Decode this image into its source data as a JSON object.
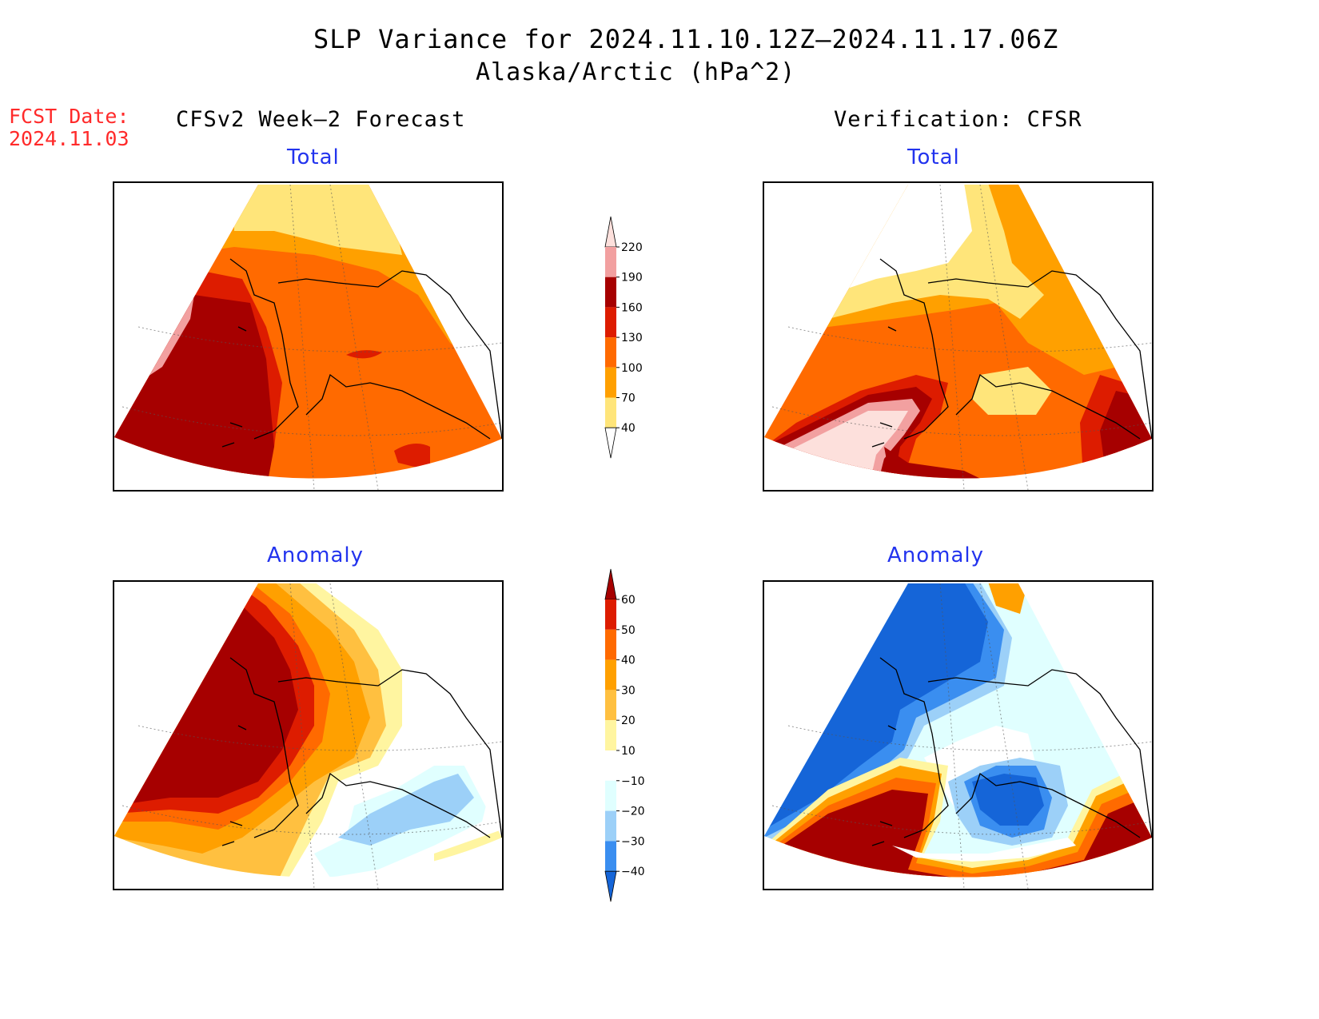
{
  "header": {
    "title": "SLP Variance for 2024.11.10.12Z–2024.11.17.06Z",
    "subtitle": "Alaska/Arctic (hPa^2)"
  },
  "forecast_date": {
    "label": "FCST Date:",
    "value": "2024.11.03"
  },
  "columns": {
    "left": "CFSv2 Week–2 Forecast",
    "right": "Verification: CFSR"
  },
  "panels": {
    "forecast_total": "Total",
    "forecast_anomaly": "Anomaly",
    "verification_total": "Total",
    "verification_anomaly": "Anomaly"
  },
  "colorbars": {
    "total": {
      "labels": [
        "220",
        "190",
        "160",
        "130",
        "100",
        "70",
        "40"
      ],
      "colors": [
        "#fde0dc",
        "#f2a0a0",
        "#a60000",
        "#dd1c00",
        "#ff6a00",
        "#ffa000",
        "#ffe57a",
        "#ffffff"
      ]
    },
    "anomaly": {
      "labels": [
        "60",
        "50",
        "40",
        "30",
        "20",
        "10",
        "−10",
        "−20",
        "−30",
        "−40"
      ],
      "colors": [
        "#a60000",
        "#dd1c00",
        "#ff6a00",
        "#ffa000",
        "#ffc040",
        "#fff5a0",
        "#ffffff",
        "#e0ffff",
        "#9cd0f8",
        "#3a8ef0",
        "#1565d8"
      ]
    }
  }
}
